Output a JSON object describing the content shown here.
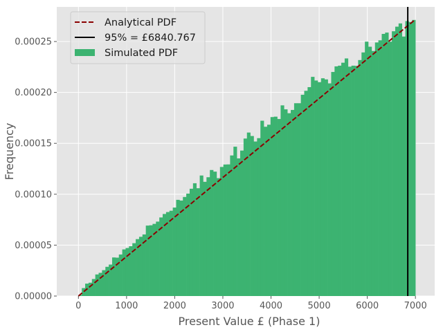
{
  "chart_data": {
    "type": "bar",
    "title": "",
    "xlabel": "Present Value £ (Phase 1)",
    "ylabel": "Frequency",
    "xlim": [
      -450,
      7400
    ],
    "ylim": [
      0,
      0.000284
    ],
    "grid": true,
    "legend_position": "top-left",
    "x_ticks": [
      0,
      1000,
      2000,
      3000,
      4000,
      5000,
      6000,
      7000
    ],
    "x_tick_labels": [
      "0",
      "1000",
      "2000",
      "3000",
      "4000",
      "5000",
      "6000",
      "7000"
    ],
    "y_ticks": [
      0,
      5e-05,
      0.0001,
      0.00015,
      0.0002,
      0.00025
    ],
    "y_tick_labels": [
      "0.00000",
      "0.00005",
      "0.00010",
      "0.00015",
      "0.00020",
      "0.00025"
    ],
    "histogram": {
      "name": "Simulated PDF",
      "color": "#3cb371",
      "bin_start": 0,
      "bin_end": 7000,
      "bin_count": 100,
      "values": [
        9e-07,
        7.8e-06,
        1.22e-05,
        1.31e-05,
        1.67e-05,
        2.12e-05,
        2.28e-05,
        2.54e-05,
        2.87e-05,
        3.09e-05,
        3.79e-05,
        3.77e-05,
        4.08e-05,
        4.58e-05,
        4.72e-05,
        4.89e-05,
        5.19e-05,
        5.59e-05,
        5.82e-05,
        6.05e-05,
        6.92e-05,
        6.95e-05,
        7.09e-05,
        7.31e-05,
        7.72e-05,
        8.06e-05,
        8.25e-05,
        8.38e-05,
        8.69e-05,
        9.45e-05,
        9.38e-05,
        9.73e-05,
        0.0001006,
        0.0001054,
        0.0001108,
        0.0001059,
        0.0001184,
        0.0001122,
        0.0001167,
        0.0001238,
        0.0001222,
        0.0001158,
        0.0001268,
        0.0001292,
        0.0001293,
        0.0001381,
        0.0001467,
        0.0001352,
        0.0001429,
        0.0001547,
        0.0001606,
        0.0001572,
        0.0001518,
        0.0001551,
        0.0001722,
        0.0001663,
        0.0001683,
        0.0001758,
        0.0001762,
        0.0001739,
        0.0001873,
        0.0001834,
        0.0001796,
        0.0001828,
        0.0001894,
        0.0001894,
        0.0001977,
        0.0002016,
        0.0002052,
        0.0002153,
        0.0002117,
        0.0002101,
        0.0002139,
        0.0002128,
        0.0002089,
        0.0002201,
        0.0002256,
        0.0002263,
        0.0002292,
        0.0002334,
        0.0002253,
        0.0002263,
        0.0002261,
        0.0002318,
        0.0002393,
        0.0002499,
        0.0002449,
        0.0002407,
        0.0002491,
        0.0002512,
        0.0002575,
        0.0002588,
        0.0002499,
        0.0002601,
        0.0002646,
        0.0002678,
        0.0002549,
        0.0002701,
        0.0002692,
        0.0002712
      ]
    },
    "lines": [
      {
        "name": "Analytical PDF",
        "kind": "line",
        "color": "#8b0000",
        "style": "dashed",
        "x": [
          0,
          7000
        ],
        "y": [
          0,
          0.0002717
        ]
      },
      {
        "name": "95% = £6840.767",
        "kind": "vline",
        "color": "#000000",
        "style": "solid",
        "x": 6840.767
      }
    ],
    "legend": [
      "Analytical PDF",
      "95% = £6840.767",
      "Simulated PDF"
    ]
  }
}
